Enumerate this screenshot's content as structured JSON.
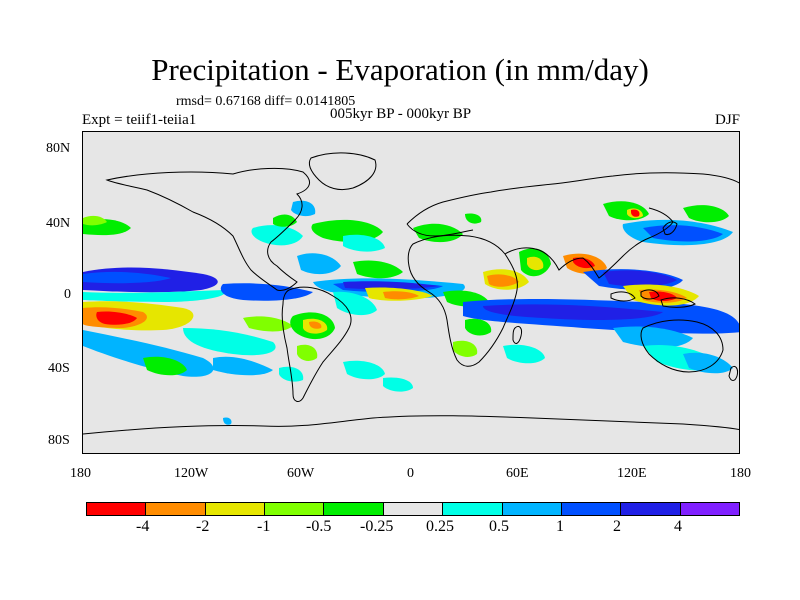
{
  "header": {
    "title": "Precipitation - Evaporation (in mm/day)",
    "stats": "rmsd= 0.67168 diff= 0.0141805",
    "experiment": "Expt = teiif1-teiia1",
    "period": "005kyr BP - 000kyr BP",
    "season": "DJF"
  },
  "axes": {
    "y_ticks": [
      "80N",
      "40N",
      "0",
      "40S",
      "80S"
    ],
    "x_ticks": [
      "180",
      "120W",
      "60W",
      "0",
      "60E",
      "120E",
      "180"
    ]
  },
  "colorbar": {
    "colors": [
      "#ff0000",
      "#ff8c00",
      "#e6e600",
      "#80ff00",
      "#00ee00",
      "#e6e6e6",
      "#00ffe6",
      "#00b4ff",
      "#0050ff",
      "#2020e6",
      "#8020ff"
    ],
    "labels": [
      "-4",
      "-2",
      "-1",
      "-0.5",
      "-0.25",
      "0.25",
      "0.5",
      "1",
      "2",
      "4"
    ]
  },
  "map": {
    "background_color": "#e6e6e6",
    "coastline_color": "#000000"
  }
}
